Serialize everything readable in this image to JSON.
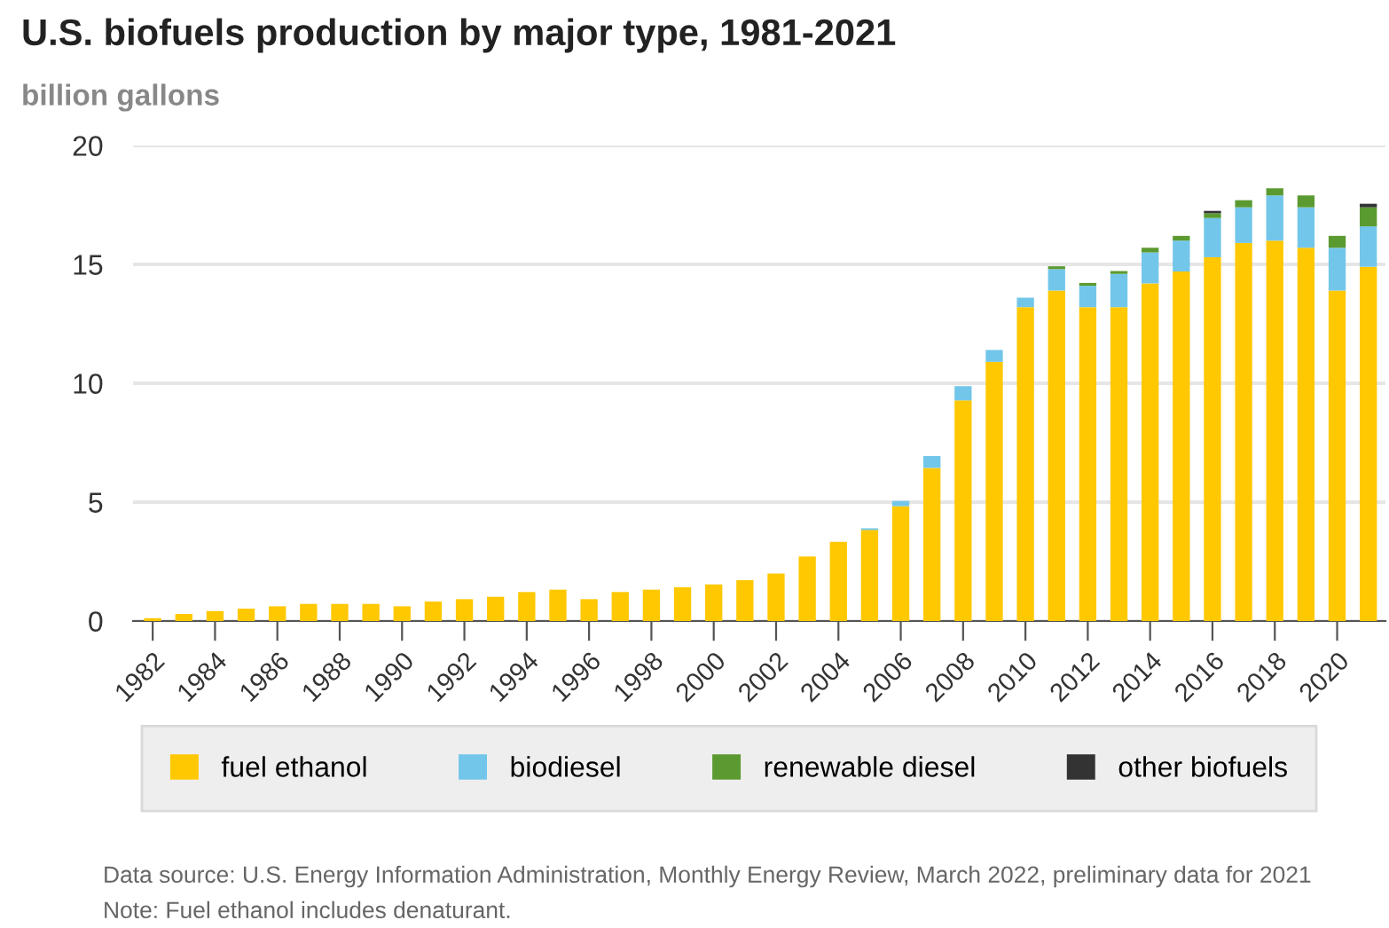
{
  "chart_data": {
    "type": "bar",
    "stacked": true,
    "title": "U.S. biofuels production by major type, 1981-2021",
    "ylabel": "billion gallons",
    "categories": [
      "1982",
      null,
      "1984",
      null,
      "1986",
      null,
      "1988",
      null,
      "1990",
      null,
      "1992",
      null,
      "1994",
      null,
      "1996",
      null,
      "1998",
      null,
      "2000",
      null,
      "2002",
      null,
      "2004",
      null,
      "2006",
      null,
      "2008",
      null,
      "2010",
      null,
      "2012",
      null,
      "2014",
      null,
      "2016",
      null,
      "2018",
      null,
      "2020",
      null
    ],
    "series": [
      {
        "name": "fuel ethanol",
        "color": "#ffc800",
        "values": [
          0.12,
          0.3,
          0.42,
          0.52,
          0.62,
          0.72,
          0.72,
          0.72,
          0.62,
          0.82,
          0.92,
          1.02,
          1.22,
          1.32,
          0.92,
          1.22,
          1.32,
          1.42,
          1.54,
          1.72,
          2.0,
          2.71,
          3.33,
          3.83,
          4.83,
          6.44,
          9.28,
          10.9,
          13.2,
          13.9,
          13.2,
          13.2,
          14.2,
          14.7,
          15.3,
          15.9,
          16.0,
          15.7,
          13.9,
          14.9
        ]
      },
      {
        "name": "biodiesel",
        "color": "#72c6ea",
        "values": [
          0,
          0,
          0,
          0,
          0,
          0,
          0,
          0,
          0,
          0,
          0,
          0,
          0,
          0,
          0,
          0,
          0,
          0,
          0,
          0,
          0,
          0,
          0,
          0.07,
          0.22,
          0.5,
          0.6,
          0.5,
          0.4,
          0.9,
          0.9,
          1.4,
          1.3,
          1.3,
          1.65,
          1.5,
          1.9,
          1.7,
          1.8,
          1.7
        ]
      },
      {
        "name": "renewable diesel",
        "color": "#5b9a31",
        "values": [
          0,
          0,
          0,
          0,
          0,
          0,
          0,
          0,
          0,
          0,
          0,
          0,
          0,
          0,
          0,
          0,
          0,
          0,
          0,
          0,
          0,
          0,
          0,
          0,
          0,
          0,
          0,
          0,
          0,
          0.12,
          0.12,
          0.12,
          0.2,
          0.2,
          0.2,
          0.3,
          0.3,
          0.5,
          0.5,
          0.8
        ]
      },
      {
        "name": "other biofuels",
        "color": "#333333",
        "values": [
          0,
          0,
          0,
          0,
          0,
          0,
          0,
          0,
          0,
          0,
          0,
          0,
          0,
          0,
          0,
          0,
          0,
          0,
          0,
          0,
          0,
          0,
          0,
          0,
          0,
          0,
          0,
          0,
          0,
          0,
          0,
          0,
          0,
          0,
          0.1,
          0,
          0,
          0,
          0,
          0.15
        ]
      }
    ],
    "ylim": [
      0,
      20
    ],
    "yticks": [
      0,
      5,
      10,
      15,
      20
    ],
    "grid": "y",
    "legend": "bottom",
    "annotations": [
      "Data source: U.S. Energy Information Administration, Monthly Energy Review, March 2022, preliminary data for 2021",
      "Note: Fuel ethanol includes denaturant."
    ]
  }
}
